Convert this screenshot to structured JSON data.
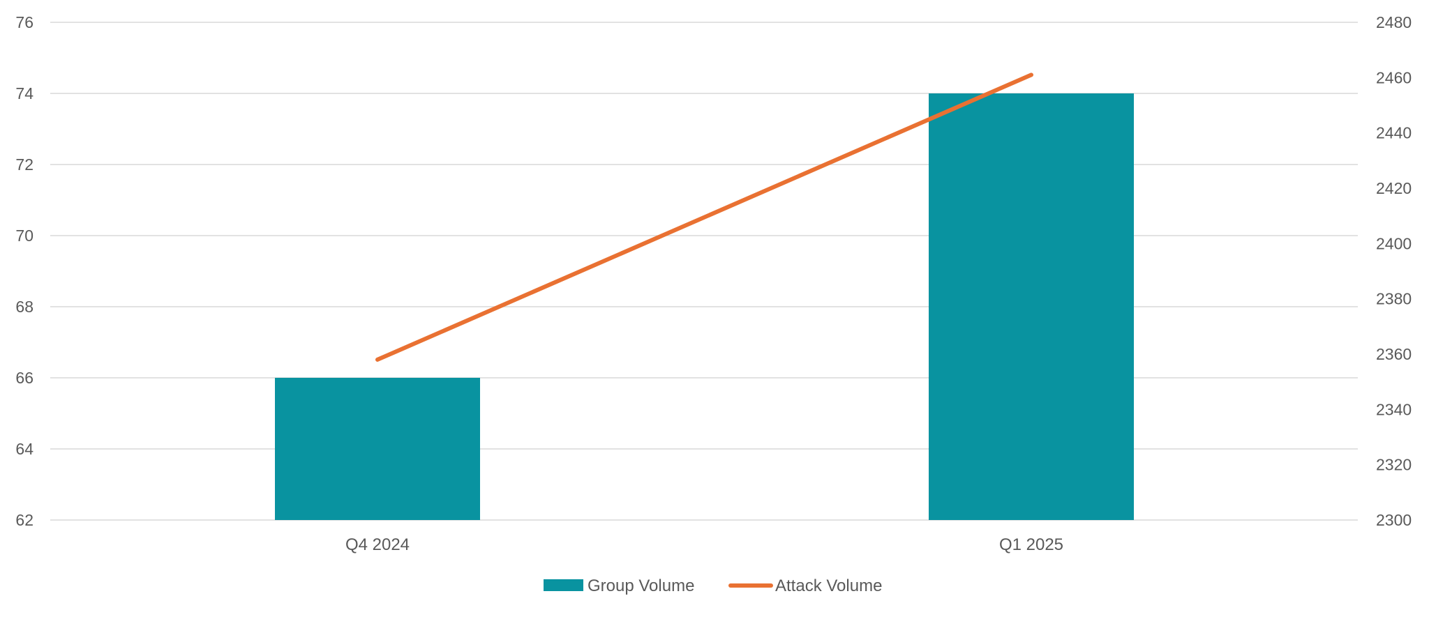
{
  "colors": {
    "bar": "#0993A0",
    "line": "#E97132",
    "grid": "#D9D9D9",
    "text": "#595959",
    "background": "#FFFFFF"
  },
  "chart_data": {
    "type": "bar",
    "categories": [
      "Q4 2024",
      "Q1 2025"
    ],
    "series": [
      {
        "name": "Group Volume",
        "type": "bar",
        "axis": "left",
        "values": [
          66,
          74
        ]
      },
      {
        "name": "Attack Volume",
        "type": "line",
        "axis": "right",
        "values": [
          2358,
          2461
        ]
      }
    ],
    "y_left": {
      "ylim": [
        62,
        76
      ],
      "ticks": [
        "62",
        "64",
        "66",
        "68",
        "70",
        "72",
        "74",
        "76"
      ]
    },
    "y_right": {
      "ylim": [
        2300,
        2480
      ],
      "ticks": [
        "2300",
        "2320",
        "2340",
        "2360",
        "2380",
        "2400",
        "2420",
        "2440",
        "2460",
        "2480"
      ]
    },
    "grid": true,
    "legend": "bottom-center"
  }
}
